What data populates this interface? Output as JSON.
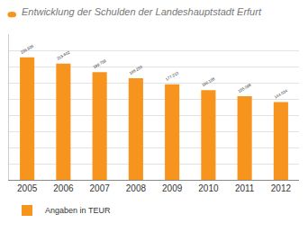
{
  "chart_data": {
    "type": "bar",
    "title": "Entwicklung der Schulden der Landeshauptstadt Erfurt",
    "categories": [
      "2005",
      "2006",
      "2007",
      "2008",
      "2009",
      "2010",
      "2011",
      "2012"
    ],
    "series": [
      {
        "name": "Angaben in TEUR",
        "color": "#f7941d",
        "values": [
          226926,
          215602,
          199759,
          188253,
          177210,
          166158,
          155098,
          144034
        ],
        "value_labels": [
          "226.926",
          "215.602",
          "199.759",
          "188.253",
          "177.210",
          "166.158",
          "155.098",
          "144.034"
        ]
      }
    ],
    "ylim": [
      0,
      270000
    ],
    "yticks": [
      0,
      30000,
      60000,
      90000,
      120000,
      150000,
      180000,
      210000,
      240000,
      270000
    ],
    "grid": true,
    "data_labels": true,
    "tick_labels": "x",
    "legend": "bottom left"
  }
}
